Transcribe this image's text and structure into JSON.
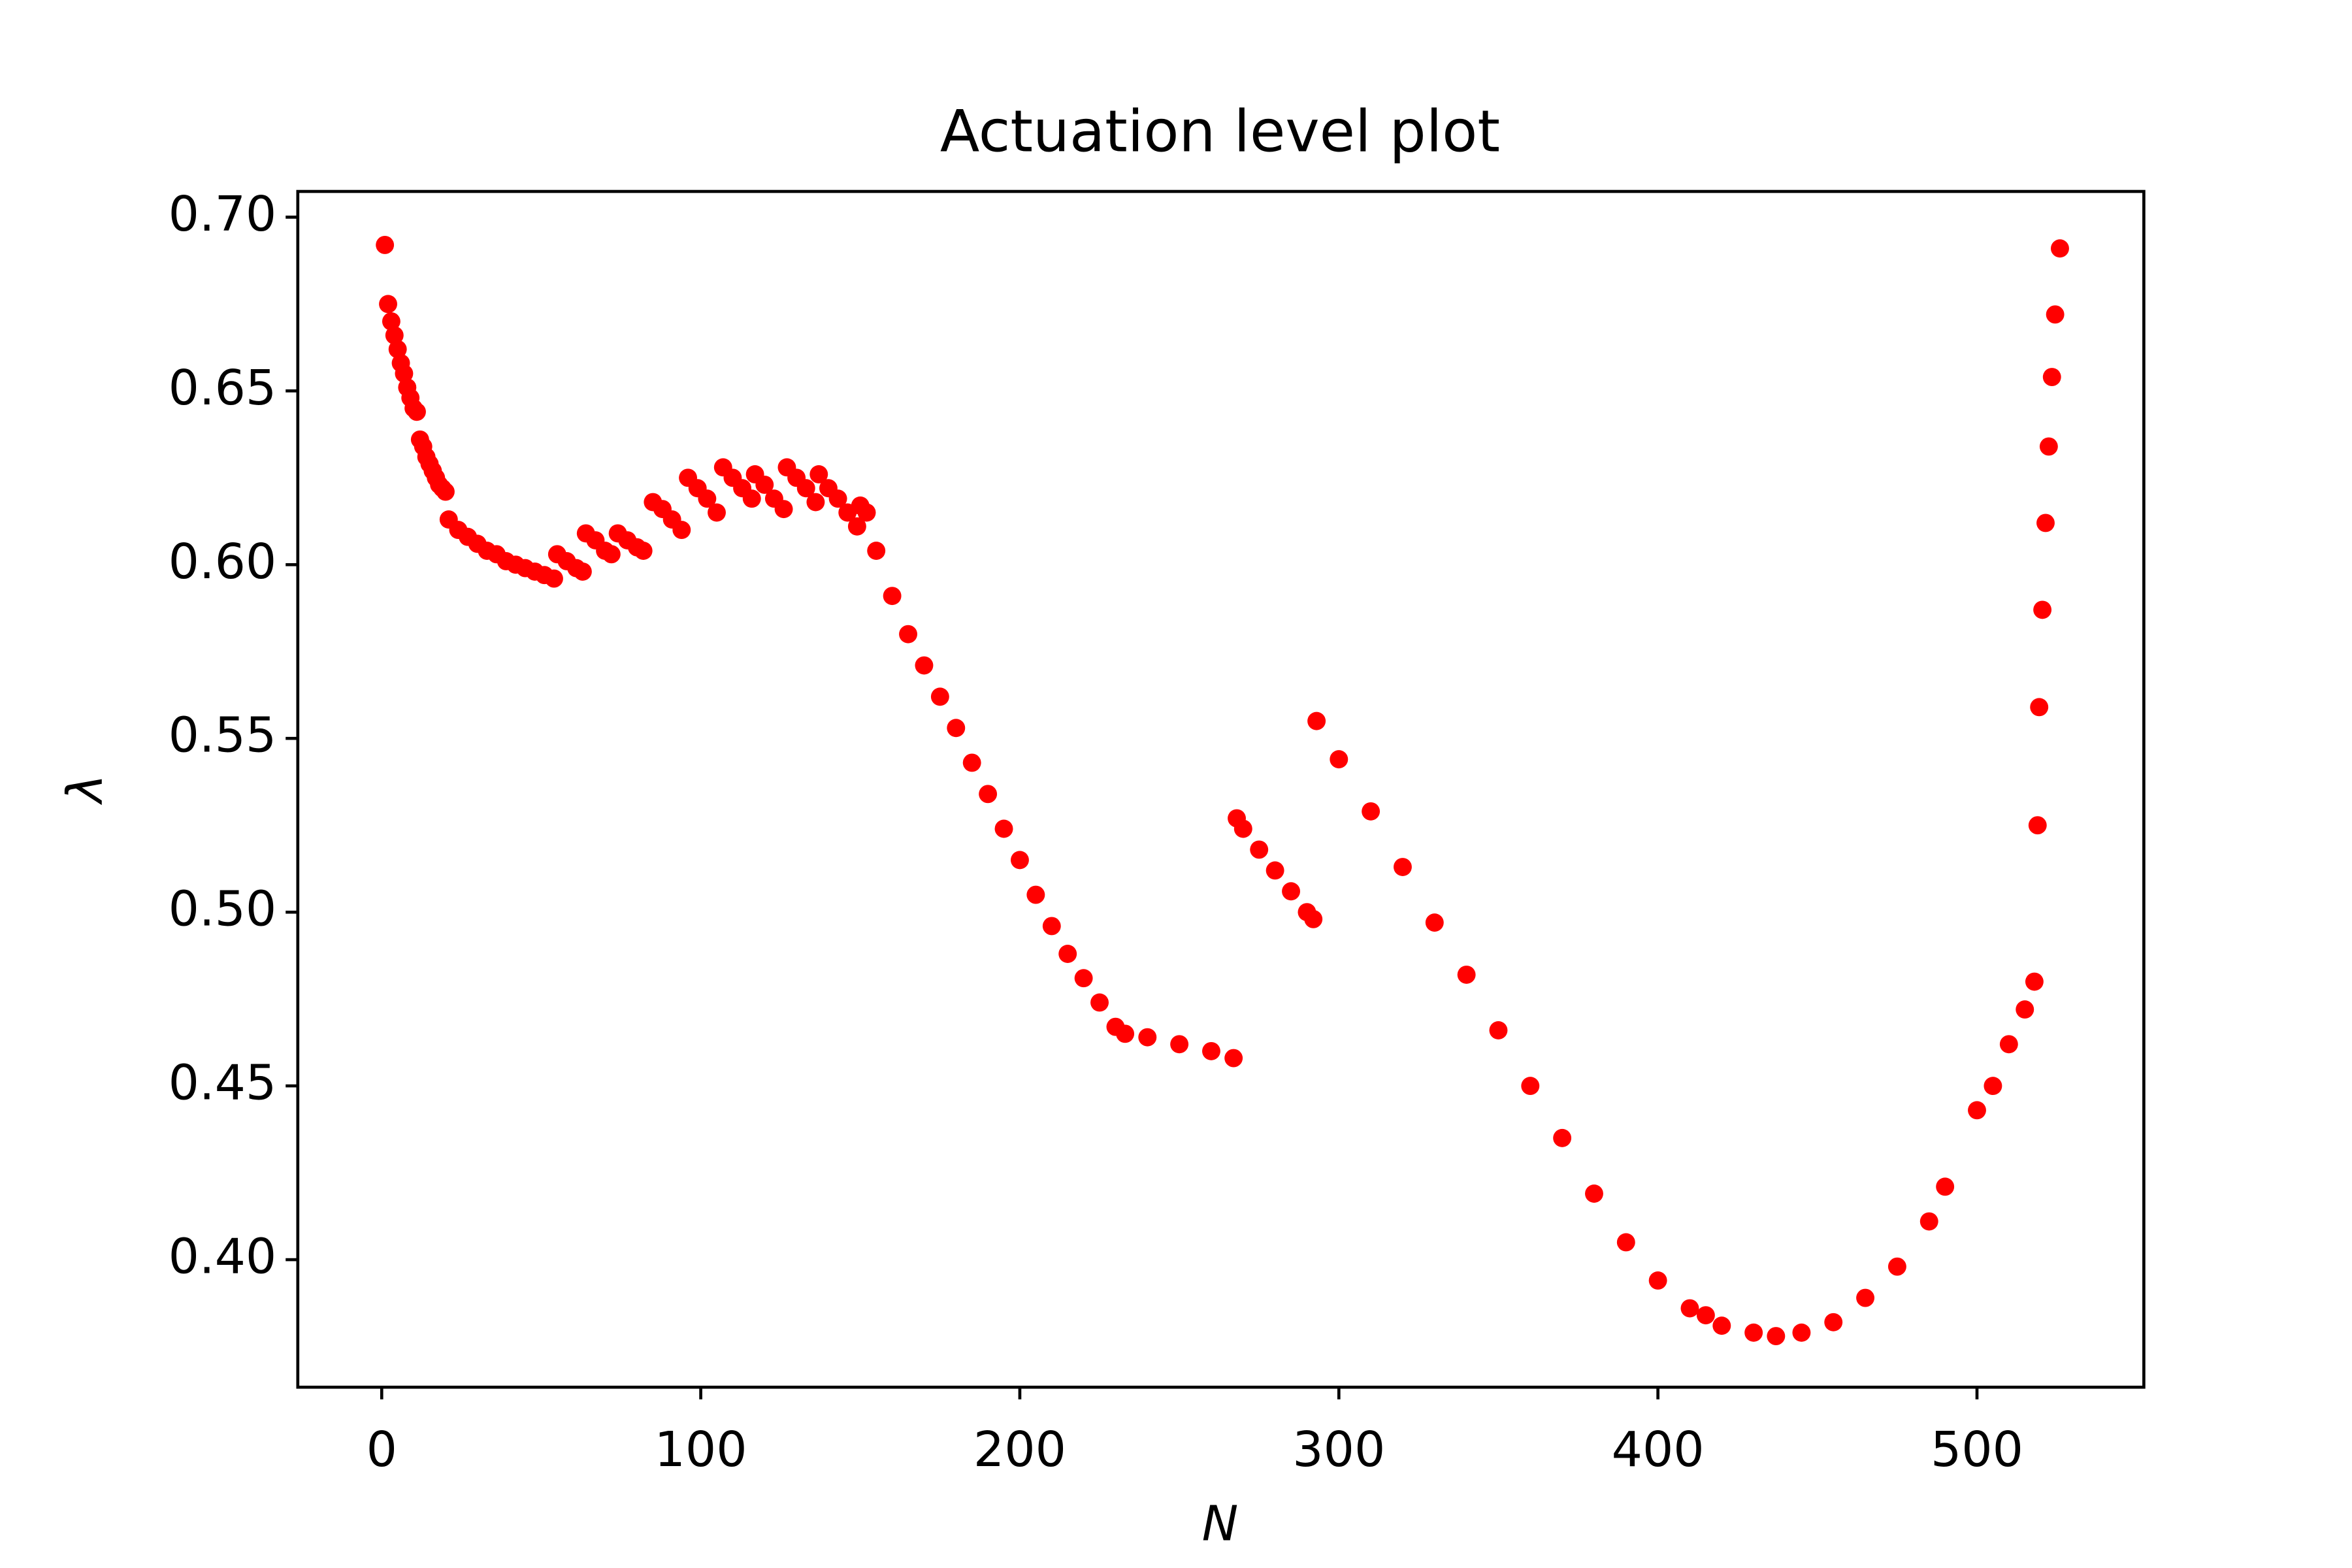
{
  "chart_data": {
    "type": "scatter",
    "title": "Actuation level plot",
    "x_label": "N",
    "y_label": "λ",
    "xlim": [
      -26.3,
      552.3
    ],
    "ylim": [
      0.3633,
      0.7074
    ],
    "xticks": [
      0,
      100,
      200,
      300,
      400,
      500
    ],
    "yticks": [
      {
        "value": 0.4,
        "label": "0.40"
      },
      0.45,
      {
        "value": 0.5,
        "label": "0.50"
      },
      0.55,
      {
        "value": 0.6,
        "label": "0.60"
      },
      0.65,
      {
        "value": 0.7,
        "label": "0.70"
      }
    ],
    "series": [
      {
        "color": "#ff0000",
        "x": [
          1,
          2,
          3,
          4,
          5,
          6,
          7,
          8,
          9,
          10,
          11,
          12,
          13,
          14,
          15,
          16,
          17,
          18,
          19,
          20,
          21,
          24,
          27,
          30,
          33,
          36,
          39,
          42,
          45,
          48,
          51,
          54,
          55,
          58,
          61,
          63,
          64,
          67,
          70,
          72,
          74,
          77,
          80,
          82,
          85,
          88,
          91,
          94,
          96,
          99,
          102,
          105,
          107,
          110,
          113,
          116,
          117,
          120,
          123,
          126,
          127,
          130,
          133,
          136,
          137,
          140,
          143,
          146,
          149,
          150,
          152,
          155,
          160,
          165,
          170,
          175,
          180,
          185,
          190,
          195,
          200,
          205,
          210,
          215,
          220,
          225,
          230,
          233,
          240,
          250,
          260,
          267,
          268,
          270,
          275,
          280,
          285,
          290,
          292,
          293,
          300,
          310,
          320,
          330,
          340,
          350,
          360,
          370,
          380,
          390,
          400,
          410,
          415,
          420,
          430,
          437,
          445,
          455,
          465,
          475,
          485,
          490,
          500,
          505,
          510,
          515,
          518,
          519,
          519.5,
          520.5,
          521.5,
          522.5,
          523.5,
          524.5,
          526
        ],
        "values": [
          0.692,
          0.675,
          0.67,
          0.666,
          0.662,
          0.658,
          0.655,
          0.651,
          0.648,
          0.645,
          0.644,
          0.636,
          0.634,
          0.631,
          0.629,
          0.627,
          0.625,
          0.623,
          0.622,
          0.621,
          0.613,
          0.61,
          0.608,
          0.606,
          0.604,
          0.603,
          0.601,
          0.6,
          0.599,
          0.598,
          0.597,
          0.596,
          0.603,
          0.601,
          0.599,
          0.598,
          0.609,
          0.607,
          0.604,
          0.603,
          0.609,
          0.607,
          0.605,
          0.604,
          0.618,
          0.616,
          0.613,
          0.61,
          0.625,
          0.622,
          0.619,
          0.615,
          0.628,
          0.625,
          0.622,
          0.619,
          0.626,
          0.623,
          0.619,
          0.616,
          0.628,
          0.625,
          0.622,
          0.618,
          0.626,
          0.622,
          0.619,
          0.615,
          0.611,
          0.617,
          0.615,
          0.604,
          0.591,
          0.58,
          0.571,
          0.562,
          0.553,
          0.543,
          0.534,
          0.524,
          0.515,
          0.505,
          0.496,
          0.488,
          0.481,
          0.474,
          0.467,
          0.465,
          0.464,
          0.462,
          0.46,
          0.458,
          0.527,
          0.524,
          0.518,
          0.512,
          0.506,
          0.5,
          0.498,
          0.555,
          0.544,
          0.529,
          0.513,
          0.497,
          0.482,
          0.466,
          0.45,
          0.435,
          0.419,
          0.405,
          0.394,
          0.386,
          0.384,
          0.381,
          0.379,
          0.378,
          0.379,
          0.382,
          0.389,
          0.398,
          0.411,
          0.421,
          0.443,
          0.45,
          0.462,
          0.472,
          0.48,
          0.525,
          0.559,
          0.587,
          0.612,
          0.634,
          0.654,
          0.672,
          0.691
        ]
      }
    ]
  }
}
